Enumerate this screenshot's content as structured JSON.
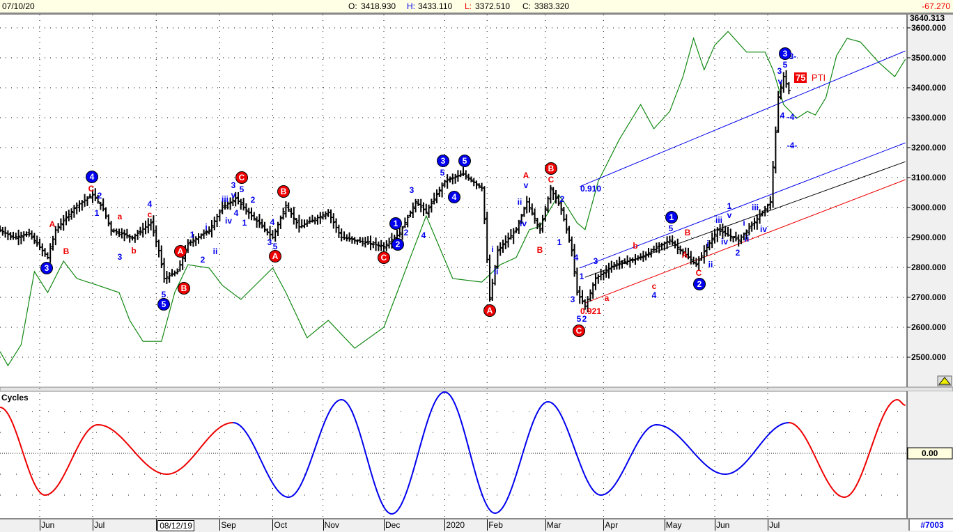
{
  "header": {
    "date": "07/10/20",
    "open_label": "O:",
    "open": "3418.930",
    "high_label": "H:",
    "high": "3433.110",
    "low_label": "L:",
    "low": "3372.510",
    "close_label": "C:",
    "close": "3383.320",
    "change": "-67.270"
  },
  "axis": {
    "top_value": "3640.313",
    "cycles_zero": "0.00",
    "chart_id": "#7003",
    "scale_icon": "scale-icon"
  },
  "panels": {
    "cycles_title": "Cycles"
  },
  "colors": {
    "bars": "#000000",
    "overlay": "#118811",
    "blue": "#0000ee",
    "red": "#ee0000",
    "cycle_red": "#ee0000",
    "cycle_blue": "#0000ee"
  },
  "chart_data": {
    "type": "bar",
    "title": "",
    "ylim": [
      2450,
      3640
    ],
    "yticks": [
      "3600.000",
      "3500.000",
      "3400.000",
      "3300.000",
      "3200.000",
      "3100.000",
      "3000.000",
      "2900.000",
      "2800.000",
      "2700.000",
      "2600.000",
      "2500.000"
    ],
    "ytick_values": [
      3600,
      3500,
      3400,
      3300,
      3200,
      3100,
      3000,
      2900,
      2800,
      2700,
      2600,
      2500
    ],
    "xticks": [
      {
        "label": "Jun",
        "bar": 15
      },
      {
        "label": "Jul",
        "bar": 35
      },
      {
        "label": "08/12/19",
        "bar": 59,
        "boxed": true
      },
      {
        "label": "Sep",
        "bar": 83
      },
      {
        "label": "Oct",
        "bar": 103
      },
      {
        "label": "Nov",
        "bar": 122
      },
      {
        "label": "Dec",
        "bar": 145
      },
      {
        "label": "2020",
        "bar": 168
      },
      {
        "label": "Feb",
        "bar": 184
      },
      {
        "label": "Mar",
        "bar": 206
      },
      {
        "label": "Apr",
        "bar": 228
      },
      {
        "label": "May",
        "bar": 251
      },
      {
        "label": "Jun",
        "bar": 270
      },
      {
        "label": "Jul",
        "bar": 290
      }
    ],
    "price_closes": [
      [
        0,
        2925
      ],
      [
        5,
        2900
      ],
      [
        11,
        2912
      ],
      [
        18,
        2833
      ],
      [
        21,
        2925
      ],
      [
        29,
        3007
      ],
      [
        35,
        3042
      ],
      [
        39,
        2995
      ],
      [
        42,
        2925
      ],
      [
        50,
        2900
      ],
      [
        57,
        2949
      ],
      [
        60,
        2856
      ],
      [
        62,
        2763
      ],
      [
        67,
        2786
      ],
      [
        71,
        2879
      ],
      [
        79,
        2925
      ],
      [
        84,
        3000
      ],
      [
        89,
        3030
      ],
      [
        95,
        2972
      ],
      [
        103,
        2900
      ],
      [
        108,
        3007
      ],
      [
        113,
        2935
      ],
      [
        124,
        2984
      ],
      [
        129,
        2900
      ],
      [
        145,
        2870
      ],
      [
        151,
        2915
      ],
      [
        157,
        3019
      ],
      [
        161,
        2984
      ],
      [
        168,
        3088
      ],
      [
        175,
        3112
      ],
      [
        182,
        3065
      ],
      [
        183,
        2960
      ],
      [
        185,
        2693
      ],
      [
        188,
        2856
      ],
      [
        195,
        2925
      ],
      [
        199,
        3019
      ],
      [
        204,
        2925
      ],
      [
        208,
        3065
      ],
      [
        212,
        2995
      ],
      [
        216,
        2856
      ],
      [
        218,
        2716
      ],
      [
        221,
        2670
      ],
      [
        225,
        2763
      ],
      [
        232,
        2809
      ],
      [
        242,
        2833
      ],
      [
        253,
        2891
      ],
      [
        263,
        2809
      ],
      [
        271,
        2925
      ],
      [
        279,
        2891
      ],
      [
        287,
        2972
      ],
      [
        291,
        3019
      ],
      [
        292,
        3135
      ],
      [
        294,
        3367
      ],
      [
        296,
        3437
      ],
      [
        298,
        3391
      ]
    ],
    "overlay_line": [
      [
        0,
        2519
      ],
      [
        3,
        2472
      ],
      [
        8,
        2542
      ],
      [
        13,
        2786
      ],
      [
        18,
        2716
      ],
      [
        24,
        2821
      ],
      [
        29,
        2763
      ],
      [
        37,
        2740
      ],
      [
        45,
        2716
      ],
      [
        49,
        2623
      ],
      [
        54,
        2553
      ],
      [
        61,
        2553
      ],
      [
        66,
        2716
      ],
      [
        71,
        2809
      ],
      [
        79,
        2798
      ],
      [
        84,
        2740
      ],
      [
        91,
        2693
      ],
      [
        103,
        2798
      ],
      [
        108,
        2716
      ],
      [
        116,
        2565
      ],
      [
        124,
        2623
      ],
      [
        134,
        2530
      ],
      [
        145,
        2600
      ],
      [
        150,
        2716
      ],
      [
        155,
        2833
      ],
      [
        161,
        2972
      ],
      [
        171,
        2763
      ],
      [
        182,
        2751
      ],
      [
        189,
        2809
      ],
      [
        195,
        2833
      ],
      [
        200,
        2926
      ],
      [
        204,
        2937
      ],
      [
        211,
        3042
      ],
      [
        213,
        3019
      ],
      [
        218,
        2949
      ],
      [
        221,
        2926
      ],
      [
        226,
        3088
      ],
      [
        234,
        3228
      ],
      [
        242,
        3344
      ],
      [
        247,
        3263
      ],
      [
        253,
        3321
      ],
      [
        258,
        3437
      ],
      [
        262,
        3565
      ],
      [
        266,
        3460
      ],
      [
        270,
        3542
      ],
      [
        275,
        3588
      ],
      [
        282,
        3519
      ],
      [
        289,
        3519
      ],
      [
        292,
        3460
      ],
      [
        296,
        3344
      ],
      [
        301,
        3298
      ],
      [
        305,
        3321
      ],
      [
        308,
        3309
      ],
      [
        312,
        3367
      ],
      [
        316,
        3507
      ],
      [
        320,
        3565
      ],
      [
        325,
        3553
      ],
      [
        332,
        3484
      ],
      [
        338,
        3437
      ],
      [
        342,
        3495
      ]
    ],
    "channels": [
      {
        "color": "blue",
        "from": [
          219,
          3070
        ],
        "to": [
          342,
          3523
        ]
      },
      {
        "color": "blue",
        "from": [
          219,
          2798
        ],
        "to": [
          342,
          3216
        ]
      },
      {
        "color": "black",
        "from": [
          221,
          2767
        ],
        "to": [
          342,
          3153
        ]
      },
      {
        "color": "red",
        "from": [
          221,
          2681
        ],
        "to": [
          342,
          3093
        ]
      }
    ],
    "cycles": {
      "extremes": [
        [
          0,
          6.6
        ],
        [
          17,
          -6.0
        ],
        [
          37,
          4.1
        ],
        [
          63,
          -3.0
        ],
        [
          88,
          4.4
        ],
        [
          109,
          -6.3
        ],
        [
          129,
          7.7
        ],
        [
          148,
          -8.7
        ],
        [
          168,
          8.8
        ],
        [
          187,
          -8.6
        ],
        [
          207,
          7.4
        ],
        [
          227,
          -6.0
        ],
        [
          248,
          4.1
        ],
        [
          274,
          -3.0
        ],
        [
          298,
          4.4
        ],
        [
          319,
          -6.3
        ],
        [
          339,
          7.7
        ],
        [
          342,
          6.9
        ]
      ],
      "red_until": 88,
      "red_from": 298
    }
  },
  "annotations": [
    {
      "t": "3",
      "c": "blue",
      "circle": true
    },
    {
      "t": "4",
      "c": "blue",
      "circle": true
    },
    {
      "t": "5",
      "c": "blue",
      "circle": true
    },
    {
      "t": "A",
      "c": "red",
      "circle": true
    },
    {
      "t": "B",
      "c": "red",
      "circle": true
    },
    {
      "t": "C",
      "c": "red",
      "circle": true
    },
    {
      "t": "B",
      "c": "red",
      "circle": true
    },
    {
      "t": "A",
      "c": "red",
      "circle": true
    },
    {
      "t": "C",
      "c": "red",
      "circle": true
    },
    {
      "t": "1",
      "c": "blue",
      "circle": true
    },
    {
      "t": "2",
      "c": "blue",
      "circle": true
    },
    {
      "t": "3",
      "c": "blue",
      "circle": true
    },
    {
      "t": "5",
      "c": "blue",
      "circle": true
    },
    {
      "t": "4",
      "c": "blue",
      "circle": true
    },
    {
      "t": "A",
      "c": "red",
      "circle": true
    },
    {
      "t": "B",
      "c": "red",
      "circle": true
    },
    {
      "t": "C",
      "c": "red",
      "circle": true
    },
    {
      "t": "1",
      "c": "blue",
      "circle": true
    },
    {
      "t": "2",
      "c": "blue",
      "circle": true
    },
    {
      "t": "3",
      "c": "blue",
      "circle": true
    },
    {
      "t": "A",
      "c": "red"
    },
    {
      "t": "B",
      "c": "red"
    },
    {
      "t": "C",
      "c": "red"
    },
    {
      "t": "2",
      "c": "blue"
    },
    {
      "t": "1",
      "c": "blue"
    },
    {
      "t": "a",
      "c": "red"
    },
    {
      "t": "3",
      "c": "blue"
    },
    {
      "t": "b",
      "c": "red"
    },
    {
      "t": "4",
      "c": "blue"
    },
    {
      "t": "c",
      "c": "red"
    },
    {
      "t": "5",
      "c": "blue"
    },
    {
      "t": "1",
      "c": "blue"
    },
    {
      "t": "i",
      "c": "blue"
    },
    {
      "t": "2",
      "c": "blue"
    },
    {
      "t": "ii",
      "c": "blue"
    },
    {
      "t": "3",
      "c": "blue"
    },
    {
      "t": "5",
      "c": "blue"
    },
    {
      "t": "iii",
      "c": "blue"
    },
    {
      "t": "v",
      "c": "blue"
    },
    {
      "t": "4",
      "c": "blue"
    },
    {
      "t": "iv",
      "c": "blue"
    },
    {
      "t": "2",
      "c": "blue"
    },
    {
      "t": "1",
      "c": "blue"
    },
    {
      "t": "4",
      "c": "blue"
    },
    {
      "t": "3",
      "c": "blue"
    },
    {
      "t": "5",
      "c": "blue"
    },
    {
      "t": "3",
      "c": "blue"
    },
    {
      "t": "4",
      "c": "blue"
    },
    {
      "t": "5",
      "c": "blue"
    },
    {
      "t": "2",
      "c": "blue"
    },
    {
      "t": "i",
      "c": "blue"
    },
    {
      "t": "ii",
      "c": "blue"
    },
    {
      "t": "ii",
      "c": "blue"
    },
    {
      "t": "iv",
      "c": "blue"
    },
    {
      "t": "v",
      "c": "blue"
    },
    {
      "t": "A",
      "c": "red"
    },
    {
      "t": "B",
      "c": "red"
    },
    {
      "t": "C",
      "c": "red"
    },
    {
      "t": "2",
      "c": "blue"
    },
    {
      "t": "1",
      "c": "blue"
    },
    {
      "t": "4",
      "c": "blue"
    },
    {
      "t": "3",
      "c": "blue"
    },
    {
      "t": "1",
      "c": "blue"
    },
    {
      "t": "3",
      "c": "blue"
    },
    {
      "t": "5",
      "c": "blue"
    },
    {
      "t": "2",
      "c": "blue"
    },
    {
      "t": "0.921",
      "c": "red"
    },
    {
      "t": "a",
      "c": "red"
    },
    {
      "t": "b",
      "c": "red"
    },
    {
      "t": "c",
      "c": "red"
    },
    {
      "t": "4",
      "c": "blue"
    },
    {
      "t": "0.910",
      "c": "blue"
    },
    {
      "t": "5",
      "c": "blue"
    },
    {
      "t": "B",
      "c": "red"
    },
    {
      "t": "A",
      "c": "red"
    },
    {
      "t": "C",
      "c": "red"
    },
    {
      "t": "i",
      "c": "blue"
    },
    {
      "t": "ii",
      "c": "blue"
    },
    {
      "t": "iii",
      "c": "blue"
    },
    {
      "t": "iv",
      "c": "blue"
    },
    {
      "t": "1",
      "c": "blue"
    },
    {
      "t": "v",
      "c": "blue"
    },
    {
      "t": "2",
      "c": "blue"
    },
    {
      "t": "i",
      "c": "blue"
    },
    {
      "t": "ii",
      "c": "blue"
    },
    {
      "t": "iii",
      "c": "blue"
    },
    {
      "t": "iv",
      "c": "blue"
    },
    {
      "t": "3",
      "c": "blue"
    },
    {
      "t": "v",
      "c": "blue"
    },
    {
      "t": "5",
      "c": "blue"
    },
    {
      "t": "4",
      "c": "blue"
    },
    {
      "t": "-4-",
      "c": "blue"
    },
    {
      "t": "-4-",
      "c": "blue"
    },
    {
      "t": "3-",
      "c": "blue"
    }
  ],
  "pti": {
    "value": "75",
    "label": "PTI"
  }
}
